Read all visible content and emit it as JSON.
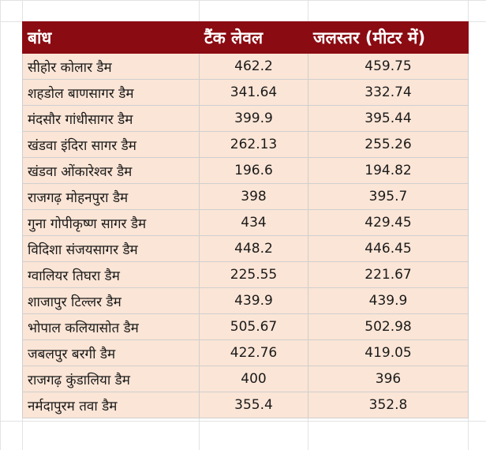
{
  "table": {
    "headers": [
      "बांध",
      "टैंक लेवल",
      "जलस्तर (मीटर में)"
    ],
    "rows": [
      [
        "सीहोर कोलार डैम",
        "462.2",
        "459.75"
      ],
      [
        "शहडोल बाणसागर डैम",
        "341.64",
        "332.74"
      ],
      [
        "मंदसौर गांधीसागर डैम",
        "399.9",
        "395.44"
      ],
      [
        "खंडवा इंदिरा सागर डैम",
        "262.13",
        "255.26"
      ],
      [
        "खंडवा ओंकारेश्वर डैम",
        "196.6",
        "194.82"
      ],
      [
        "राजगढ़ मोहनपुरा डैम",
        "398",
        "395.7"
      ],
      [
        "गुना गोपीकृष्ण सागर डैम",
        "434",
        "429.45"
      ],
      [
        "विदिशा संजयसागर डैम",
        "448.2",
        "446.45"
      ],
      [
        "ग्वालियर तिघरा डैम",
        "225.55",
        "221.67"
      ],
      [
        "शाजापुर टिल्लर डैम",
        "439.9",
        "439.9"
      ],
      [
        "भोपाल कलियासोत डैम",
        "505.67",
        "502.98"
      ],
      [
        "जबलपुर बरगी डैम",
        "422.76",
        "419.05"
      ],
      [
        "राजगढ़ कुंडालिया डैम",
        "400",
        "396"
      ],
      [
        "नर्मदापुरम तवा डैम",
        "355.4",
        "352.8"
      ]
    ]
  },
  "colors": {
    "header_bg": "#8b0b12",
    "header_text": "#ffffff",
    "cell_bg": "#fbe5d6",
    "grid": "#e2e2e2"
  }
}
